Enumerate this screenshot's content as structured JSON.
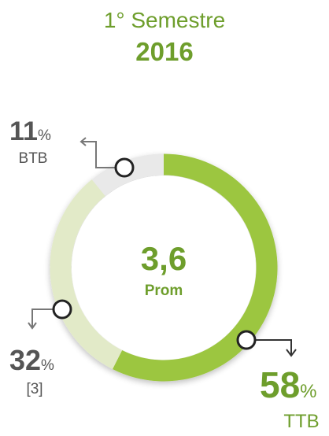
{
  "chart_data": {
    "type": "donut",
    "title": "1° Semestre",
    "subtitle": "2016",
    "center_value": "3,6",
    "center_label": "Prom",
    "unit": "%",
    "categories": [
      "TTB",
      "[3]",
      "BTB"
    ],
    "values": [
      58,
      32,
      11
    ],
    "colors": [
      "#9cc63f",
      "#e2eac8",
      "#e9e9e9"
    ]
  }
}
